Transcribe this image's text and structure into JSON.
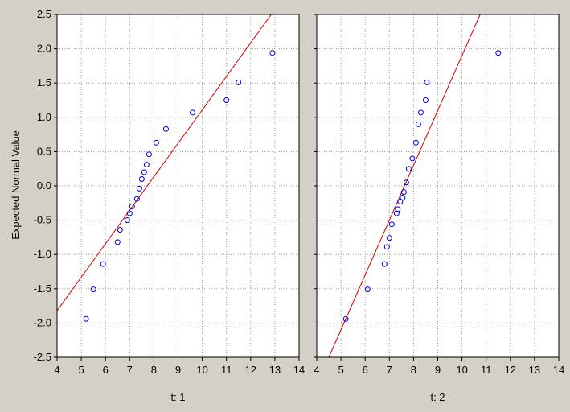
{
  "colors": {
    "background": "#d4d0c8",
    "plot_background": "#ffffff",
    "grid": "#a0a0a0",
    "point": "#0000cc",
    "fit_line": "#cc0000"
  },
  "chart_data": [
    {
      "type": "scatter",
      "panel_label": "t: 1",
      "xlabel": "t: 1",
      "ylabel": "Expected Normal Value",
      "xlim": [
        4,
        14
      ],
      "ylim": [
        -2.5,
        2.5
      ],
      "xticks": [
        "4",
        "5",
        "6",
        "7",
        "8",
        "9",
        "10",
        "11",
        "12",
        "13",
        "14"
      ],
      "yticks": [
        "2.5",
        "2.0",
        "1.5",
        "1.0",
        "0.5",
        "0.0",
        "-0.5",
        "-1.0",
        "-1.5",
        "-2.0",
        "-2.5"
      ],
      "grid": true,
      "points": [
        [
          5.2,
          -1.94
        ],
        [
          5.5,
          -1.51
        ],
        [
          5.9,
          -1.14
        ],
        [
          6.5,
          -0.82
        ],
        [
          6.6,
          -0.64
        ],
        [
          6.9,
          -0.5
        ],
        [
          7.0,
          -0.4
        ],
        [
          7.1,
          -0.3
        ],
        [
          7.3,
          -0.19
        ],
        [
          7.4,
          -0.04
        ],
        [
          7.5,
          0.1
        ],
        [
          7.6,
          0.2
        ],
        [
          7.7,
          0.31
        ],
        [
          7.8,
          0.46
        ],
        [
          8.1,
          0.63
        ],
        [
          8.5,
          0.83
        ],
        [
          9.6,
          1.07
        ],
        [
          11.0,
          1.25
        ],
        [
          11.5,
          1.51
        ],
        [
          12.9,
          1.94
        ]
      ],
      "fit_line": [
        [
          4.0,
          -1.82
        ],
        [
          12.85,
          2.5
        ]
      ]
    },
    {
      "type": "scatter",
      "panel_label": "t: 2",
      "xlabel": "t: 2",
      "xlim": [
        4,
        14
      ],
      "ylim": [
        -2.5,
        2.5
      ],
      "xticks": [
        "4",
        "5",
        "6",
        "7",
        "8",
        "9",
        "10",
        "11",
        "12",
        "13",
        "14"
      ],
      "grid": true,
      "points": [
        [
          5.2,
          -1.94
        ],
        [
          6.1,
          -1.51
        ],
        [
          6.8,
          -1.14
        ],
        [
          6.9,
          -0.89
        ],
        [
          7.0,
          -0.76
        ],
        [
          7.1,
          -0.56
        ],
        [
          7.3,
          -0.4
        ],
        [
          7.35,
          -0.34
        ],
        [
          7.45,
          -0.23
        ],
        [
          7.55,
          -0.17
        ],
        [
          7.6,
          -0.09
        ],
        [
          7.7,
          0.05
        ],
        [
          7.8,
          0.25
        ],
        [
          7.95,
          0.4
        ],
        [
          8.1,
          0.63
        ],
        [
          8.2,
          0.9
        ],
        [
          8.3,
          1.07
        ],
        [
          8.5,
          1.25
        ],
        [
          8.55,
          1.51
        ],
        [
          11.5,
          1.94
        ]
      ],
      "fit_line": [
        [
          4.5,
          -2.5
        ],
        [
          10.75,
          2.5
        ]
      ]
    }
  ]
}
